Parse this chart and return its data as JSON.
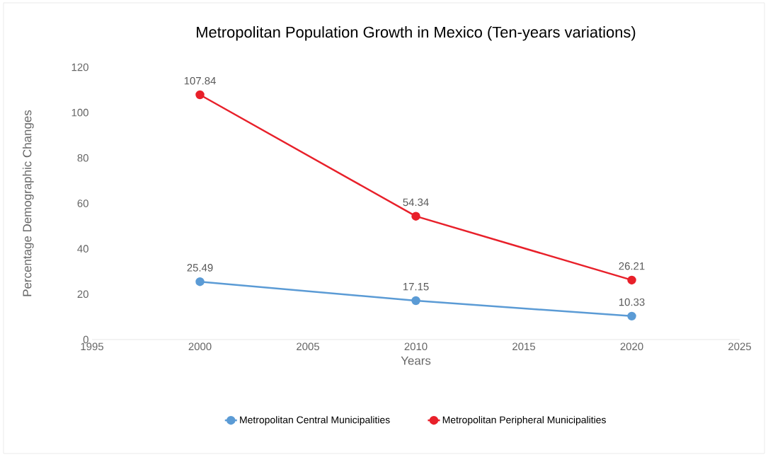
{
  "chart_data": {
    "type": "line",
    "title": "Metropolitan Population Growth in Mexico (Ten-years variations)",
    "xlabel": "Years",
    "ylabel": "Percentage Demographic Changes",
    "x": [
      2000,
      2010,
      2020
    ],
    "series": [
      {
        "name": "Metropolitan Central Municipalities",
        "color": "#5b9bd5",
        "values": [
          25.49,
          17.15,
          10.33
        ]
      },
      {
        "name": "Metropolitan Peripheral Municipalities",
        "color": "#e8202a",
        "values": [
          107.84,
          54.34,
          26.21
        ]
      }
    ],
    "xlim": [
      1995,
      2025
    ],
    "ylim": [
      0,
      120
    ],
    "xticks": [
      1995,
      2000,
      2005,
      2010,
      2015,
      2020,
      2025
    ],
    "yticks": [
      0,
      20,
      40,
      60,
      80,
      100,
      120
    ],
    "data_labels": true,
    "legend": "bottom",
    "marker": "circle",
    "line_style": "solid"
  }
}
